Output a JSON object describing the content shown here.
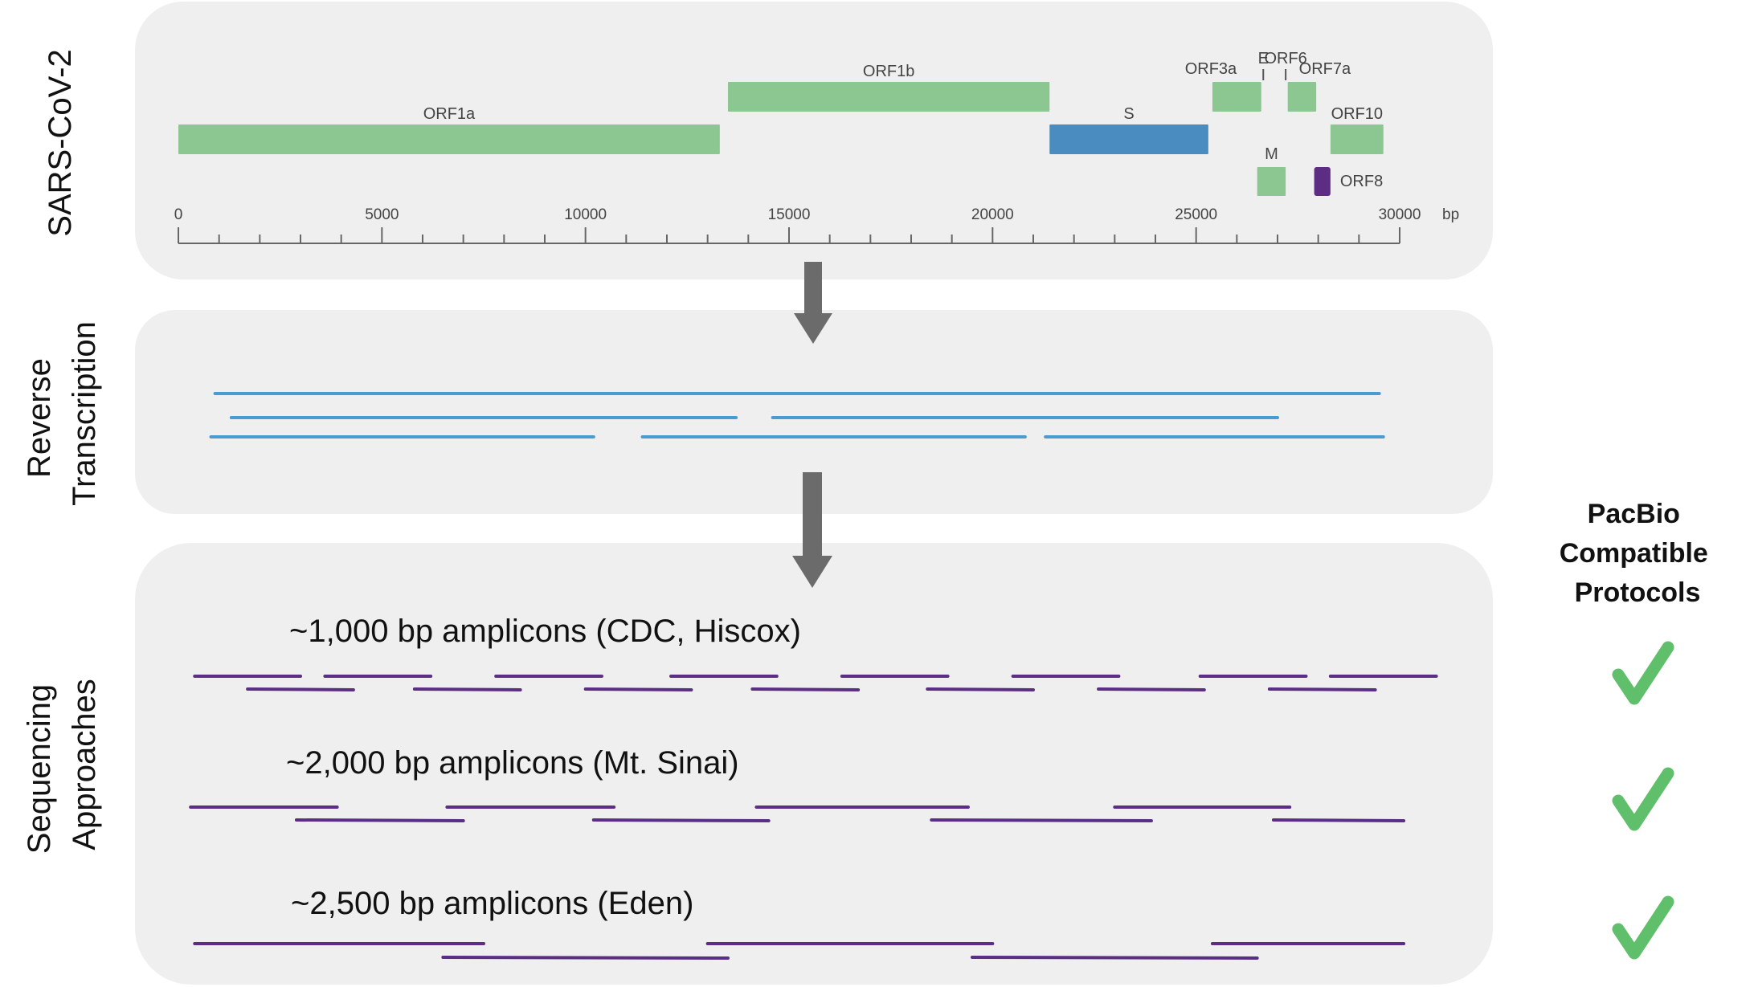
{
  "colors": {
    "gene_green": "#8cc690",
    "gene_blue": "#4a8cc0",
    "gene_purple": "#5c2d82",
    "transcript_blue": "#4a9bd0",
    "amplicon_purple": "#5a2e84",
    "arrow_gray": "#6b6b6b",
    "check_green": "#5fbf6a"
  },
  "panels": {
    "genome": {
      "side_label": "SARS-CoV-2",
      "genes": [
        {
          "name": "ORF1a",
          "start": 0,
          "end": 13300,
          "row": "low",
          "color": "green"
        },
        {
          "name": "ORF1b",
          "start": 13500,
          "end": 21400,
          "row": "top",
          "color": "green"
        },
        {
          "name": "S",
          "start": 21400,
          "end": 25300,
          "row": "low",
          "color": "blue"
        },
        {
          "name": "ORF3a",
          "start": 25400,
          "end": 26600,
          "row": "top",
          "color": "green"
        },
        {
          "name": "E",
          "start": 26650,
          "end": 26700,
          "row": "tick",
          "color": "gray"
        },
        {
          "name": "ORF6",
          "start": 27200,
          "end": 27250,
          "row": "tick",
          "color": "gray"
        },
        {
          "name": "ORF7a",
          "start": 27250,
          "end": 27950,
          "row": "top",
          "color": "green"
        },
        {
          "name": "M",
          "start": 26500,
          "end": 27200,
          "row": "bottom",
          "color": "green"
        },
        {
          "name": "ORF8",
          "start": 27900,
          "end": 28300,
          "row": "bottom",
          "color": "purple"
        },
        {
          "name": "ORF10",
          "start": 28300,
          "end": 29600,
          "row": "low",
          "color": "green"
        }
      ],
      "axis": {
        "min": 0,
        "max": 30000,
        "major_ticks": [
          0,
          5000,
          10000,
          15000,
          20000,
          25000,
          30000
        ],
        "tick_labels": [
          "0",
          "5000",
          "10000",
          "15000",
          "20000",
          "25000",
          "30000"
        ],
        "minor_step": 1000,
        "unit": "bp"
      }
    },
    "rt": {
      "side_label_lines": [
        "Reverse",
        "Transcription"
      ],
      "transcripts": [
        {
          "start": 900,
          "end": 29500
        },
        {
          "start": 1300,
          "end": 13700
        },
        {
          "start": 14600,
          "end": 27000
        },
        {
          "start": 800,
          "end": 10200
        },
        {
          "start": 11400,
          "end": 20800
        },
        {
          "start": 21300,
          "end": 29600
        }
      ]
    },
    "seq": {
      "side_label_lines": [
        "Sequencing",
        "Approaches"
      ],
      "protocols": [
        {
          "title": "~1,000 bp amplicons (CDC, Hiscox)",
          "amplicons": [
            {
              "start": 400,
              "end": 3000,
              "lane": 0
            },
            {
              "start": 3600,
              "end": 6200,
              "lane": 0
            },
            {
              "start": 7800,
              "end": 10400,
              "lane": 0
            },
            {
              "start": 12100,
              "end": 14700,
              "lane": 0
            },
            {
              "start": 16300,
              "end": 18900,
              "lane": 0
            },
            {
              "start": 20500,
              "end": 23100,
              "lane": 0
            },
            {
              "start": 25100,
              "end": 27700,
              "lane": 0
            },
            {
              "start": 28300,
              "end": 30900,
              "lane": 0
            },
            {
              "start": 1700,
              "end": 4300,
              "lane": 1
            },
            {
              "start": 5800,
              "end": 8400,
              "lane": 1
            },
            {
              "start": 10000,
              "end": 12600,
              "lane": 1
            },
            {
              "start": 14100,
              "end": 16700,
              "lane": 1
            },
            {
              "start": 18400,
              "end": 21000,
              "lane": 1
            },
            {
              "start": 22600,
              "end": 25200,
              "lane": 1
            },
            {
              "start": 26800,
              "end": 29400,
              "lane": 1
            }
          ]
        },
        {
          "title": "~2,000 bp amplicons (Mt. Sinai)",
          "amplicons": [
            {
              "start": 300,
              "end": 3900,
              "lane": 0
            },
            {
              "start": 6600,
              "end": 10700,
              "lane": 0
            },
            {
              "start": 14200,
              "end": 19400,
              "lane": 0
            },
            {
              "start": 23000,
              "end": 27300,
              "lane": 0
            },
            {
              "start": 2900,
              "end": 7000,
              "lane": 1
            },
            {
              "start": 10200,
              "end": 14500,
              "lane": 1
            },
            {
              "start": 18500,
              "end": 23900,
              "lane": 1
            },
            {
              "start": 26900,
              "end": 30100,
              "lane": 1
            }
          ]
        },
        {
          "title": "~2,500 bp amplicons (Eden)",
          "amplicons": [
            {
              "start": 400,
              "end": 7500,
              "lane": 0
            },
            {
              "start": 13000,
              "end": 20000,
              "lane": 0
            },
            {
              "start": 25400,
              "end": 30100,
              "lane": 0
            },
            {
              "start": 6500,
              "end": 13500,
              "lane": 1
            },
            {
              "start": 19500,
              "end": 26500,
              "lane": 1
            }
          ]
        }
      ]
    }
  },
  "pacbio": {
    "title_lines": [
      "PacBio",
      "Compatible",
      "Protocols"
    ],
    "checks": [
      {
        "protocol": "~1,000 bp amplicons (CDC, Hiscox)",
        "compatible": true
      },
      {
        "protocol": "~2,000 bp amplicons (Mt. Sinai)",
        "compatible": true
      },
      {
        "protocol": "~2,500 bp amplicons (Eden)",
        "compatible": true
      }
    ],
    "check_icon": "checkmark-icon"
  }
}
